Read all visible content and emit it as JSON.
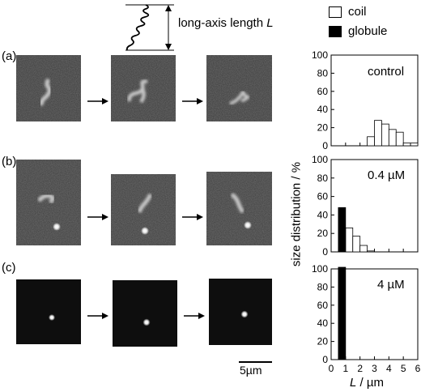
{
  "schematic": {
    "label_text": "long-axis length ",
    "label_var": "L"
  },
  "legend": [
    {
      "name": "coil",
      "fill": "#ffffff"
    },
    {
      "name": "globule",
      "fill": "#000000"
    }
  ],
  "panels": [
    {
      "label": "(a)",
      "condition": "control"
    },
    {
      "label": "(b)",
      "condition": "0.4 µM"
    },
    {
      "label": "(c)",
      "condition": "4 µM"
    }
  ],
  "scalebar": {
    "label": "5µm"
  },
  "axes": {
    "ylabel": "size distribution / %",
    "xlabel_var": "L",
    "xlabel_unit": " / µm",
    "xticks": [
      "0",
      "1",
      "2",
      "3",
      "4",
      "5",
      "6"
    ],
    "yticks": [
      "0",
      "20",
      "40",
      "60",
      "80",
      "100"
    ]
  },
  "colors": {
    "coil": "#ffffff",
    "globule": "#000000",
    "micrograph_bg": "#3a3a3a"
  },
  "chart_data": [
    {
      "type": "bar",
      "condition": "control",
      "xlim": [
        0,
        6
      ],
      "ylim": [
        0,
        100
      ],
      "bin_width": 0.5,
      "series": [
        {
          "name": "coil",
          "bins": [
            2.5,
            3.0,
            3.5,
            4.0,
            4.5,
            5.0,
            5.5
          ],
          "values": [
            10,
            28,
            24,
            18,
            15,
            3,
            3
          ]
        },
        {
          "name": "globule",
          "bins": [],
          "values": []
        }
      ]
    },
    {
      "type": "bar",
      "condition": "0.4 µM",
      "xlim": [
        0,
        6
      ],
      "ylim": [
        0,
        100
      ],
      "bin_width": 0.5,
      "series": [
        {
          "name": "coil",
          "bins": [
            0.5,
            1.0,
            1.5,
            2.0,
            2.5
          ],
          "values": [
            5,
            26,
            17,
            7,
            1
          ]
        },
        {
          "name": "globule",
          "bins": [
            0.5
          ],
          "values": [
            48
          ]
        }
      ]
    },
    {
      "type": "bar",
      "condition": "4 µM",
      "xlim": [
        0,
        6
      ],
      "ylim": [
        0,
        100
      ],
      "bin_width": 0.5,
      "series": [
        {
          "name": "coil",
          "bins": [],
          "values": []
        },
        {
          "name": "globule",
          "bins": [
            0.5
          ],
          "values": [
            104
          ]
        }
      ]
    }
  ]
}
